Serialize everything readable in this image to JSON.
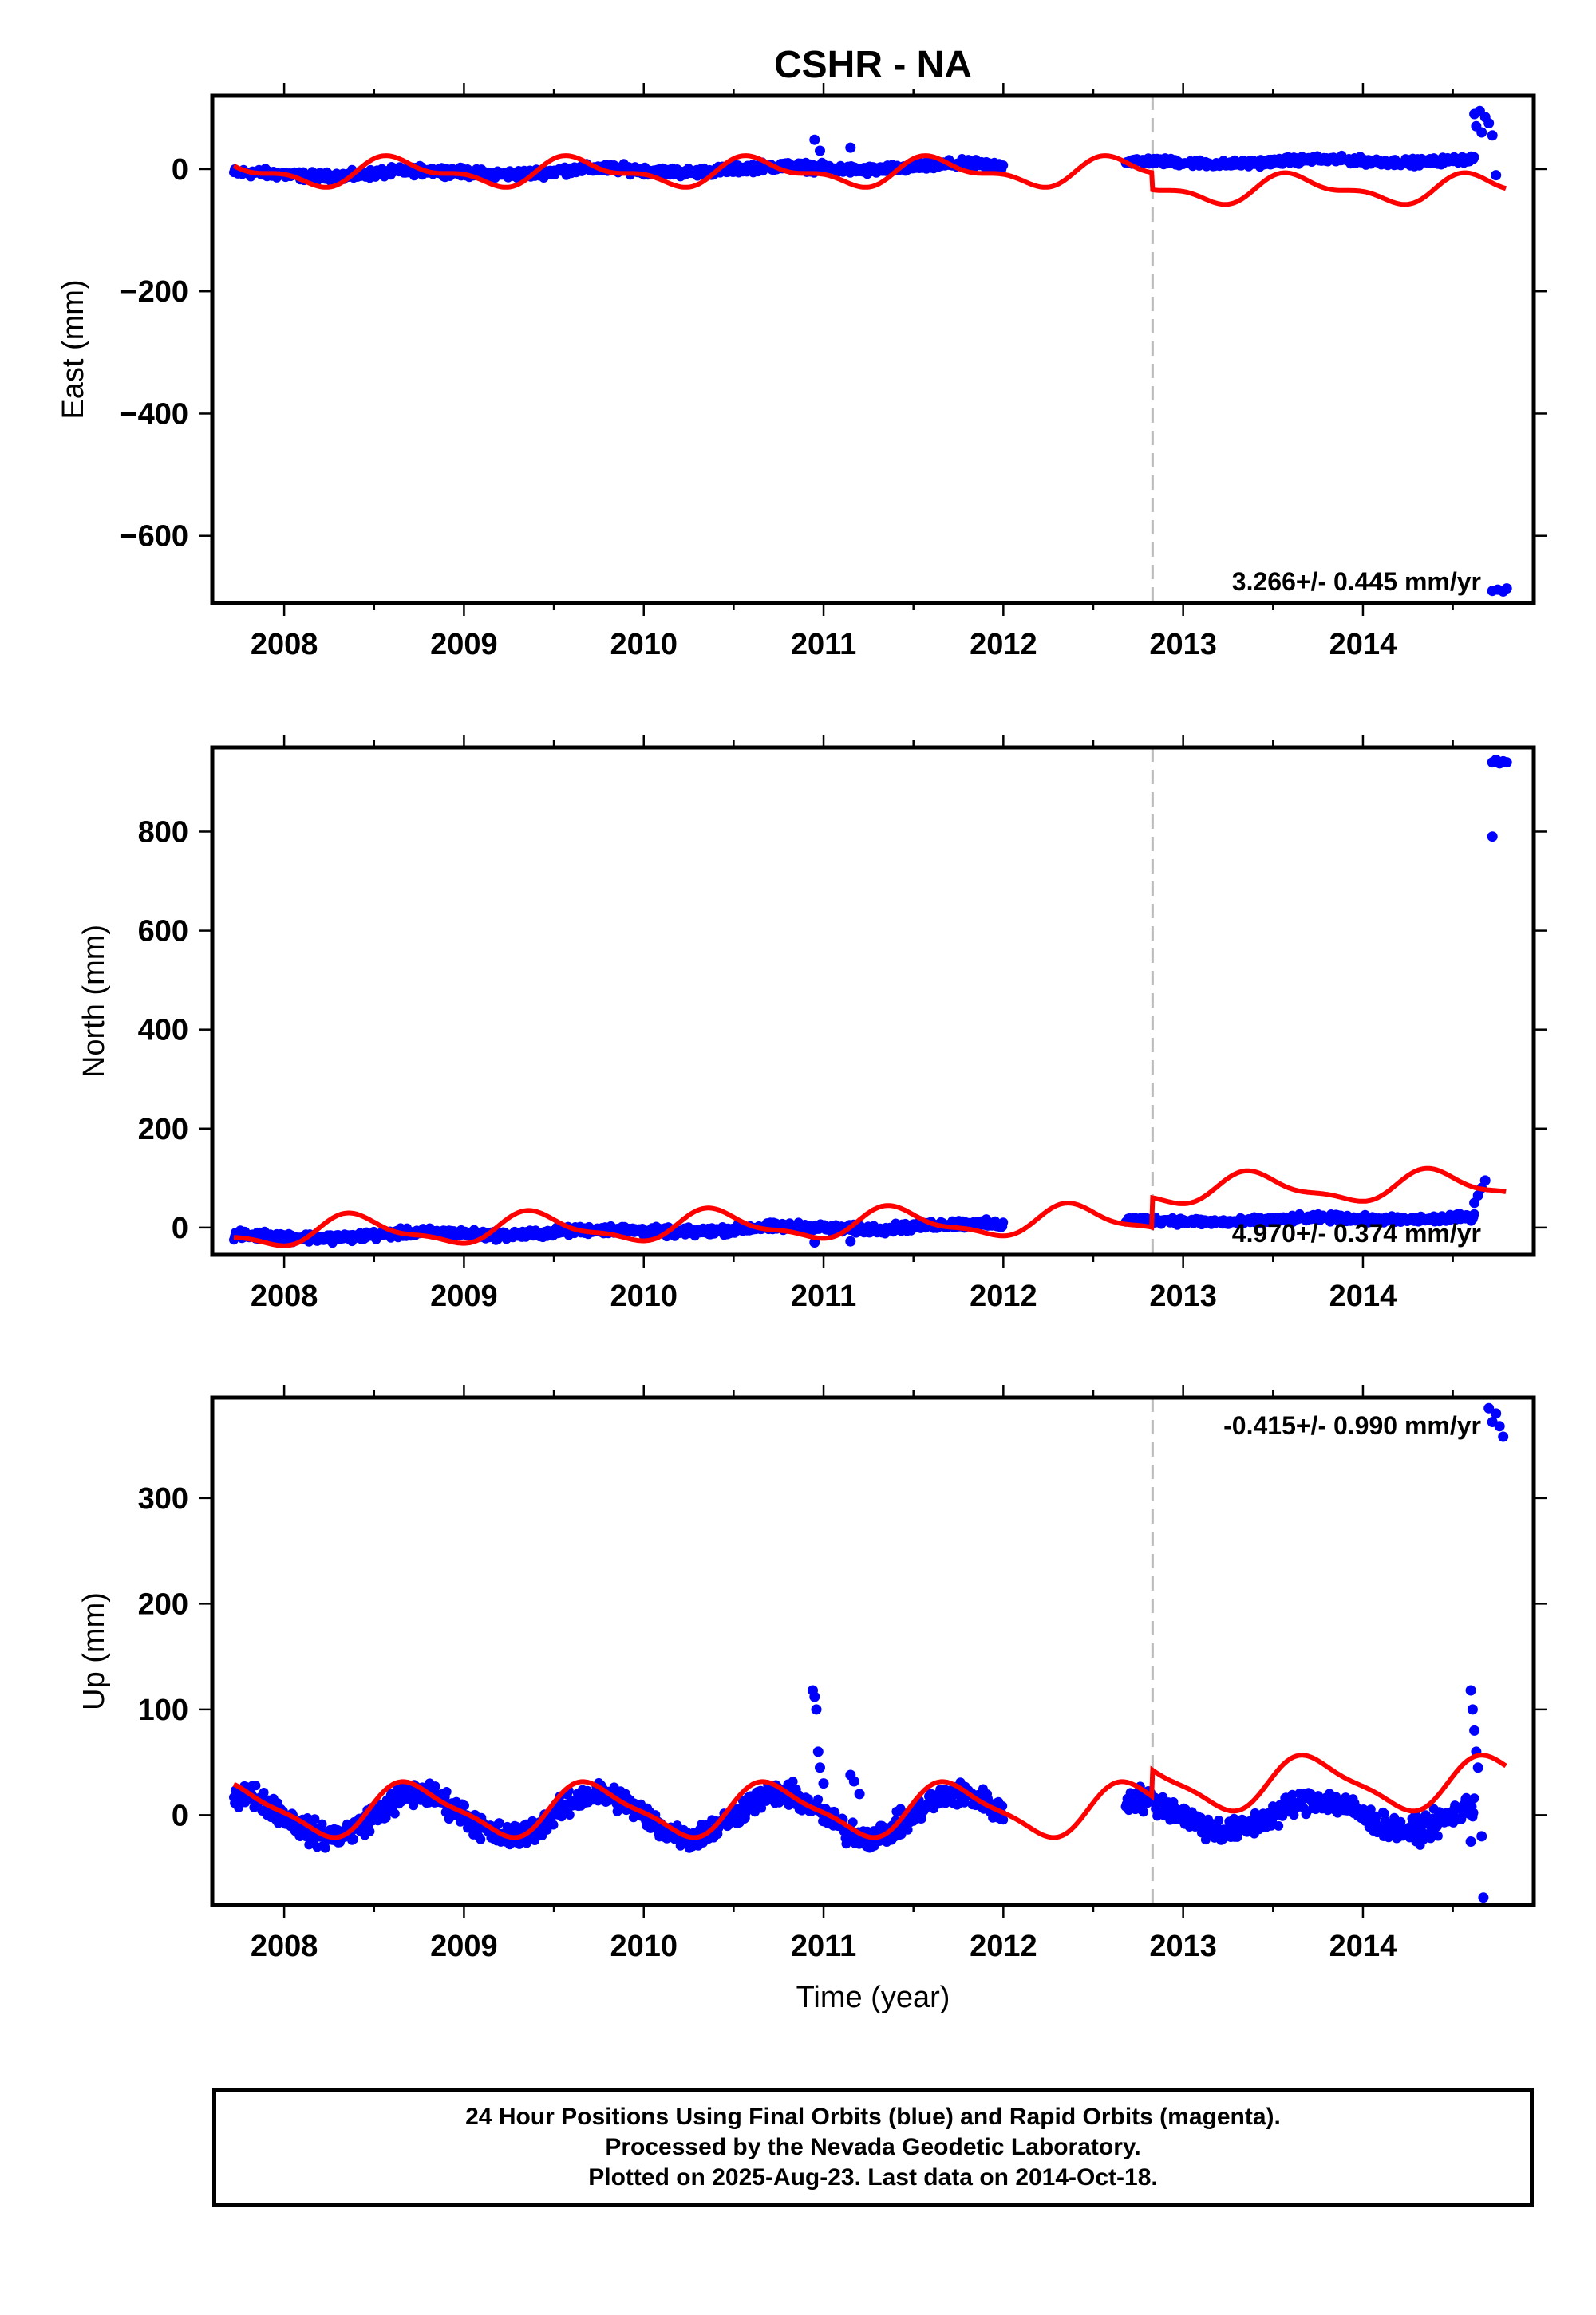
{
  "title": "CSHR - NA",
  "x_axis_label": "Time (year)",
  "footer": {
    "line1": "24 Hour Positions Using Final Orbits (blue) and Rapid Orbits (magenta).",
    "line2": "Processed by the Nevada Geodetic Laboratory.",
    "line3": "Plotted on 2025-Aug-23. Last data on 2014-Oct-18."
  },
  "colors": {
    "data": "#0000ff",
    "model": "#ff0000",
    "event": "#bbbbbb",
    "frame": "#000000"
  },
  "chart_data": [
    {
      "type": "scatter",
      "component": "East",
      "ylabel": "East (mm)",
      "xlim": [
        2007.6,
        2014.95
      ],
      "ylim": [
        -710,
        120
      ],
      "x_ticks": [
        2008,
        2009,
        2010,
        2011,
        2012,
        2013,
        2014
      ],
      "y_ticks": [
        0,
        -200,
        -400,
        -600
      ],
      "y_tick_labels": [
        "0",
        "−200",
        "−400",
        "−600"
      ],
      "velocity_label": "3.266+/- 0.445 mm/yr",
      "event_line_x": 2012.83,
      "data_segments": [
        {
          "start": 2007.72,
          "end": 2012.0,
          "y0": -10,
          "y1": 5,
          "amp": 4,
          "noise": 5
        },
        {
          "start": 2012.68,
          "end": 2014.62,
          "y0": 10,
          "y1": 15,
          "amp": 3,
          "noise": 4
        }
      ],
      "outliers": [
        {
          "x": 2010.95,
          "y": 48
        },
        {
          "x": 2010.98,
          "y": 30
        },
        {
          "x": 2011.15,
          "y": 35
        },
        {
          "x": 2014.62,
          "y": 90
        },
        {
          "x": 2014.63,
          "y": 70
        },
        {
          "x": 2014.65,
          "y": 95
        },
        {
          "x": 2014.66,
          "y": 60
        },
        {
          "x": 2014.68,
          "y": 85
        },
        {
          "x": 2014.7,
          "y": 75
        },
        {
          "x": 2014.72,
          "y": 55
        },
        {
          "x": 2014.74,
          "y": -10
        },
        {
          "x": 2014.72,
          "y": -690
        },
        {
          "x": 2014.75,
          "y": -688
        },
        {
          "x": 2014.78,
          "y": -691
        },
        {
          "x": 2014.8,
          "y": -686
        }
      ],
      "model": {
        "base": -5,
        "slope": 0,
        "amp": 20,
        "amp2": 10,
        "phase": 0.7,
        "jump_x": 2012.83,
        "jump": -28,
        "end_x": 2014.8
      }
    },
    {
      "type": "scatter",
      "component": "North",
      "ylabel": "North (mm)",
      "xlim": [
        2007.6,
        2014.95
      ],
      "ylim": [
        -55,
        970
      ],
      "x_ticks": [
        2008,
        2009,
        2010,
        2011,
        2012,
        2013,
        2014
      ],
      "y_ticks": [
        0,
        200,
        400,
        600,
        800
      ],
      "y_tick_labels": [
        "0",
        "200",
        "400",
        "600",
        "800"
      ],
      "velocity_label": "4.970+/- 0.374 mm/yr",
      "event_line_x": 2012.83,
      "data_segments": [
        {
          "start": 2007.72,
          "end": 2012.0,
          "y0": -20,
          "y1": 5,
          "amp": 4,
          "noise": 6
        },
        {
          "start": 2012.68,
          "end": 2014.62,
          "y0": 12,
          "y1": 20,
          "amp": 3,
          "noise": 5
        }
      ],
      "outliers": [
        {
          "x": 2010.95,
          "y": -30
        },
        {
          "x": 2011.15,
          "y": -28
        },
        {
          "x": 2014.62,
          "y": 50
        },
        {
          "x": 2014.64,
          "y": 65
        },
        {
          "x": 2014.66,
          "y": 80
        },
        {
          "x": 2014.68,
          "y": 95
        },
        {
          "x": 2014.72,
          "y": 790
        },
        {
          "x": 2014.72,
          "y": 940
        },
        {
          "x": 2014.74,
          "y": 945
        },
        {
          "x": 2014.76,
          "y": 938
        },
        {
          "x": 2014.78,
          "y": 942
        },
        {
          "x": 2014.8,
          "y": 940
        }
      ],
      "model": {
        "base": -10,
        "slope": 5,
        "amp": 28,
        "amp2": 10,
        "phase": 2.2,
        "jump_x": 2012.83,
        "jump": 60,
        "end_x": 2014.8
      }
    },
    {
      "type": "scatter",
      "component": "Up",
      "ylabel": "Up (mm)",
      "xlim": [
        2007.6,
        2014.95
      ],
      "ylim": [
        -85,
        395
      ],
      "x_ticks": [
        2008,
        2009,
        2010,
        2011,
        2012,
        2013,
        2014
      ],
      "y_ticks": [
        0,
        100,
        200,
        300
      ],
      "y_tick_labels": [
        "0",
        "100",
        "200",
        "300"
      ],
      "velocity_label": "-0.415+/- 0.990 mm/yr",
      "event_line_x": 2012.83,
      "data_segments": [
        {
          "start": 2007.72,
          "end": 2012.0,
          "y0": 0,
          "y1": 0,
          "amp": 20,
          "noise": 8
        },
        {
          "start": 2012.68,
          "end": 2014.62,
          "y0": 0,
          "y1": 0,
          "amp": 15,
          "noise": 8
        }
      ],
      "outliers": [
        {
          "x": 2010.94,
          "y": 118
        },
        {
          "x": 2010.95,
          "y": 112
        },
        {
          "x": 2010.96,
          "y": 100
        },
        {
          "x": 2010.97,
          "y": 60
        },
        {
          "x": 2010.98,
          "y": 45
        },
        {
          "x": 2011.0,
          "y": 30
        },
        {
          "x": 2011.15,
          "y": 38
        },
        {
          "x": 2011.17,
          "y": 32
        },
        {
          "x": 2011.2,
          "y": 20
        },
        {
          "x": 2014.6,
          "y": 118
        },
        {
          "x": 2014.61,
          "y": 100
        },
        {
          "x": 2014.62,
          "y": 80
        },
        {
          "x": 2014.63,
          "y": 60
        },
        {
          "x": 2014.64,
          "y": 45
        },
        {
          "x": 2014.6,
          "y": -25
        },
        {
          "x": 2014.66,
          "y": -20
        },
        {
          "x": 2014.67,
          "y": -78
        },
        {
          "x": 2014.7,
          "y": 385
        },
        {
          "x": 2014.72,
          "y": 372
        },
        {
          "x": 2014.74,
          "y": 380
        },
        {
          "x": 2014.76,
          "y": 368
        },
        {
          "x": 2014.78,
          "y": 358
        }
      ],
      "model": {
        "base": 5,
        "slope": 0,
        "amp": 24,
        "amp2": 6,
        "phase": 0.2,
        "jump_x": 2012.83,
        "jump": 25,
        "end_x": 2014.8
      }
    }
  ]
}
